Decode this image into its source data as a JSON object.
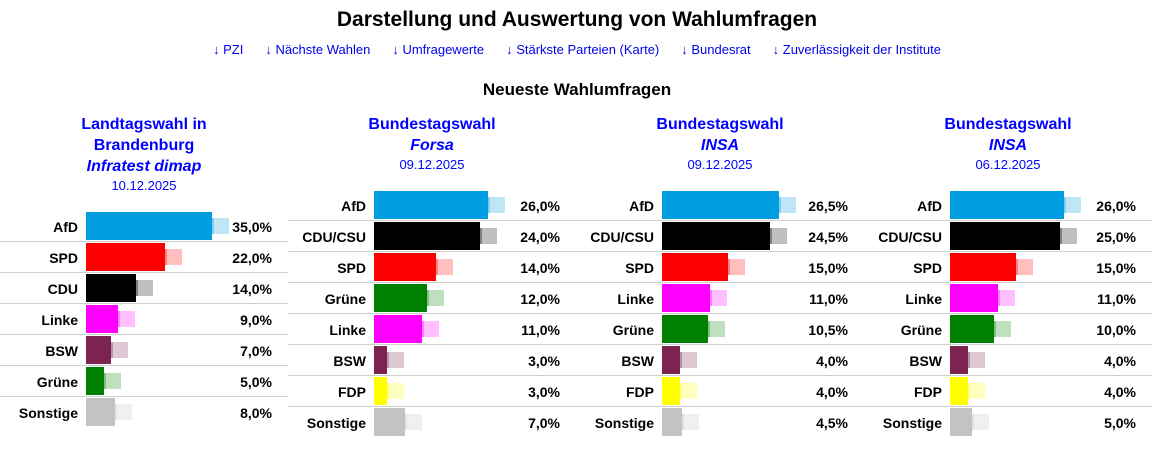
{
  "page": {
    "title": "Darstellung und Auswertung von Wahlumfragen",
    "section_heading": "Neueste Wahlumfragen"
  },
  "nav": {
    "arrow": "↓",
    "links": [
      {
        "id": "pzi",
        "label": "PZI"
      },
      {
        "id": "naechste-wahlen",
        "label": "Nächste Wahlen"
      },
      {
        "id": "umfragewerte",
        "label": "Umfragewerte"
      },
      {
        "id": "staerkste-parteien-karte",
        "label": "Stärkste Parteien (Karte)"
      },
      {
        "id": "bundesrat",
        "label": "Bundesrat"
      },
      {
        "id": "zuverlaessigkeit-institute",
        "label": "Zuverlässigkeit der Institute"
      }
    ]
  },
  "colors": {
    "heading_blue": "#0000ff",
    "link_blue": "#0000ee",
    "text": "#000000",
    "separator": "#cfcfcf"
  },
  "party_colors": {
    "AfD": "#009de0",
    "CDU": "#000000",
    "CDU/CSU": "#000000",
    "SPD": "#ff0000",
    "Grüne": "#008000",
    "Linke": "#ff00ff",
    "BSW": "#7b2452",
    "FDP": "#ffff00",
    "Sonstige": "#c3c3c3"
  },
  "chart_data": [
    {
      "type": "bar",
      "orientation": "horizontal",
      "title": "Landtagswahl in Brandenburg",
      "title_lines": [
        "Landtagswahl in",
        "Brandenburg"
      ],
      "institute": "Infratest dimap",
      "date": "10.12.2025",
      "categories": [
        "AfD",
        "SPD",
        "CDU",
        "Linke",
        "BSW",
        "Grüne",
        "Sonstige"
      ],
      "values": [
        35.0,
        22.0,
        14.0,
        9.0,
        7.0,
        5.0,
        8.0
      ],
      "value_labels": [
        "35,0%",
        "22,0%",
        "14,0%",
        "9,0%",
        "7,0%",
        "5,0%",
        "8,0%"
      ],
      "xlim": [
        0,
        40
      ],
      "grid": false,
      "legend": false
    },
    {
      "type": "bar",
      "orientation": "horizontal",
      "title": "Bundestagswahl",
      "title_lines": [
        "Bundestagswahl"
      ],
      "institute": "Forsa",
      "date": "09.12.2025",
      "categories": [
        "AfD",
        "CDU/CSU",
        "SPD",
        "Grüne",
        "Linke",
        "BSW",
        "FDP",
        "Sonstige"
      ],
      "values": [
        26.0,
        24.0,
        14.0,
        12.0,
        11.0,
        3.0,
        3.0,
        7.0
      ],
      "value_labels": [
        "26,0%",
        "24,0%",
        "14,0%",
        "12,0%",
        "11,0%",
        "3,0%",
        "3,0%",
        "7,0%"
      ],
      "xlim": [
        0,
        30
      ],
      "grid": false,
      "legend": false
    },
    {
      "type": "bar",
      "orientation": "horizontal",
      "title": "Bundestagswahl",
      "title_lines": [
        "Bundestagswahl"
      ],
      "institute": "INSA",
      "date": "09.12.2025",
      "categories": [
        "AfD",
        "CDU/CSU",
        "SPD",
        "Linke",
        "Grüne",
        "BSW",
        "FDP",
        "Sonstige"
      ],
      "values": [
        26.5,
        24.5,
        15.0,
        11.0,
        10.5,
        4.0,
        4.0,
        4.5
      ],
      "value_labels": [
        "26,5%",
        "24,5%",
        "15,0%",
        "11,0%",
        "10,5%",
        "4,0%",
        "4,0%",
        "4,5%"
      ],
      "xlim": [
        0,
        30
      ],
      "grid": false,
      "legend": false
    },
    {
      "type": "bar",
      "orientation": "horizontal",
      "title": "Bundestagswahl",
      "title_lines": [
        "Bundestagswahl"
      ],
      "institute": "INSA",
      "date": "06.12.2025",
      "categories": [
        "AfD",
        "CDU/CSU",
        "SPD",
        "Linke",
        "Grüne",
        "BSW",
        "FDP",
        "Sonstige"
      ],
      "values": [
        26.0,
        25.0,
        15.0,
        11.0,
        10.0,
        4.0,
        4.0,
        5.0
      ],
      "value_labels": [
        "26,0%",
        "25,0%",
        "15,0%",
        "11,0%",
        "10,0%",
        "4,0%",
        "4,0%",
        "5,0%"
      ],
      "xlim": [
        0,
        30
      ],
      "grid": false,
      "legend": false
    }
  ]
}
